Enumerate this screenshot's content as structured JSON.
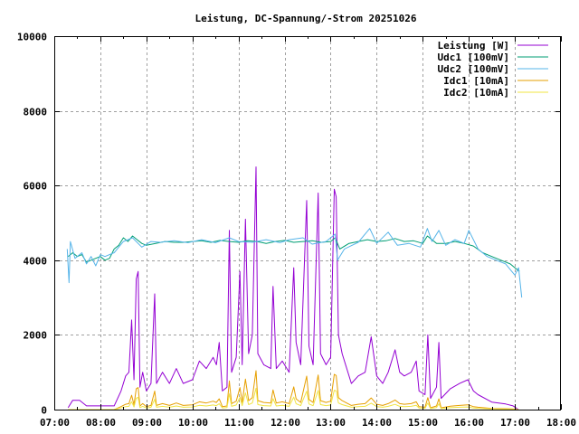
{
  "chart_data": {
    "type": "line",
    "title": "Leistung, DC-Spannung/-Strom 20251026",
    "xlabel": "",
    "ylabel": "",
    "xlim_hours": [
      7,
      18
    ],
    "ylim": [
      0,
      10000
    ],
    "grid": true,
    "legend_position": "top-right",
    "x_tick_labels": [
      "07:00",
      "08:00",
      "09:00",
      "10:00",
      "11:00",
      "12:00",
      "13:00",
      "14:00",
      "15:00",
      "16:00",
      "17:00",
      "18:00"
    ],
    "y_tick_labels": [
      "0",
      "2000",
      "4000",
      "6000",
      "8000",
      "10000"
    ],
    "power_x_hours": [
      7.3,
      7.4,
      7.55,
      7.7,
      8.0,
      8.3,
      8.45,
      8.55,
      8.62,
      8.68,
      8.73,
      8.78,
      8.82,
      8.86,
      8.92,
      9.0,
      9.1,
      9.18,
      9.22,
      9.35,
      9.5,
      9.65,
      9.8,
      10.0,
      10.15,
      10.3,
      10.45,
      10.52,
      10.58,
      10.65,
      10.75,
      10.8,
      10.85,
      10.95,
      11.03,
      11.08,
      11.15,
      11.22,
      11.3,
      11.38,
      11.42,
      11.55,
      11.7,
      11.75,
      11.82,
      11.95,
      12.1,
      12.2,
      12.25,
      12.35,
      12.48,
      12.53,
      12.62,
      12.73,
      12.78,
      12.9,
      13.0,
      13.08,
      13.12,
      13.17,
      13.25,
      13.45,
      13.6,
      13.75,
      13.88,
      14.0,
      14.13,
      14.25,
      14.4,
      14.5,
      14.6,
      14.75,
      14.86,
      14.92,
      15.05,
      15.11,
      15.17,
      15.3,
      15.35,
      15.4,
      15.6,
      15.8,
      15.98,
      16.1,
      16.2,
      16.5,
      16.8,
      16.96,
      17.08
    ],
    "voltage_x_hours_udc1": [
      7.3,
      7.4,
      7.5,
      7.6,
      7.7,
      7.8,
      7.9,
      8.0,
      8.1,
      8.2,
      8.3,
      8.4,
      8.5,
      8.6,
      8.7,
      8.8,
      8.9,
      9.0,
      9.2,
      9.4,
      9.6,
      9.8,
      10.0,
      10.2,
      10.4,
      10.6,
      10.8,
      11.0,
      11.2,
      11.4,
      11.6,
      11.8,
      12.0,
      12.2,
      12.4,
      12.6,
      12.8,
      13.0,
      13.1,
      13.2,
      13.4,
      13.6,
      13.8,
      14.0,
      14.2,
      14.4,
      14.6,
      14.8,
      15.0,
      15.1,
      15.3,
      15.5,
      15.7,
      15.9,
      16.1,
      16.3,
      16.5,
      16.7,
      16.9,
      17.0,
      17.1
    ],
    "voltage_x_hours_udc2": [
      7.28,
      7.32,
      7.35,
      7.45,
      7.6,
      7.7,
      7.8,
      7.9,
      8.0,
      8.1,
      8.3,
      8.5,
      8.7,
      8.9,
      9.1,
      9.3,
      9.6,
      9.9,
      10.2,
      10.5,
      10.8,
      11.0,
      11.3,
      11.6,
      11.9,
      12.1,
      12.4,
      12.6,
      12.9,
      13.1,
      13.15,
      13.3,
      13.6,
      13.85,
      14.0,
      14.25,
      14.45,
      14.7,
      14.95,
      15.1,
      15.2,
      15.35,
      15.5,
      15.7,
      15.9,
      16.0,
      16.2,
      16.4,
      16.6,
      16.8,
      17.0,
      17.08,
      17.15
    ],
    "series": [
      {
        "name": "Leistung [W]",
        "color": "#9400d3",
        "x_key": "power_x_hours",
        "values": [
          50,
          250,
          250,
          100,
          100,
          100,
          500,
          900,
          1000,
          2400,
          800,
          3500,
          3700,
          600,
          1000,
          500,
          700,
          3100,
          700,
          1000,
          700,
          1100,
          700,
          800,
          1300,
          1100,
          1400,
          1200,
          1800,
          500,
          600,
          4800,
          1000,
          1400,
          3700,
          1200,
          5100,
          1500,
          2000,
          6500,
          1500,
          1200,
          1100,
          3300,
          1100,
          1300,
          1000,
          3800,
          1800,
          1200,
          5600,
          1700,
          1200,
          5800,
          1500,
          1200,
          1400,
          5900,
          5700,
          2000,
          1500,
          700,
          900,
          1000,
          1950,
          900,
          700,
          1000,
          1600,
          1000,
          900,
          1000,
          1300,
          500,
          400,
          2000,
          300,
          600,
          1800,
          300,
          560,
          700,
          800,
          500,
          400,
          200,
          150,
          100,
          0
        ]
      },
      {
        "name": "Udc1 [100mV]",
        "color": "#009e73",
        "x_key": "voltage_x_hours_udc1",
        "values": [
          4100,
          4200,
          4100,
          4150,
          3950,
          4000,
          4050,
          4100,
          4000,
          4050,
          4300,
          4400,
          4600,
          4500,
          4650,
          4550,
          4450,
          4400,
          4450,
          4500,
          4480,
          4480,
          4500,
          4520,
          4480,
          4530,
          4500,
          4480,
          4520,
          4500,
          4450,
          4500,
          4530,
          4480,
          4500,
          4520,
          4480,
          4500,
          4600,
          4300,
          4450,
          4500,
          4550,
          4500,
          4520,
          4580,
          4500,
          4520,
          4450,
          4650,
          4450,
          4450,
          4500,
          4450,
          4380,
          4200,
          4100,
          4000,
          3900,
          3800,
          3700
        ]
      },
      {
        "name": "Udc2 [100mV]",
        "color": "#56b4e9",
        "x_key": "voltage_x_hours_udc2",
        "values": [
          4300,
          3400,
          4500,
          4050,
          4200,
          3900,
          4100,
          3850,
          4150,
          4100,
          4200,
          4500,
          4600,
          4350,
          4500,
          4480,
          4520,
          4470,
          4550,
          4470,
          4600,
          4500,
          4480,
          4550,
          4470,
          4550,
          4600,
          4430,
          4500,
          4700,
          4000,
          4300,
          4480,
          4850,
          4450,
          4750,
          4400,
          4450,
          4350,
          4850,
          4500,
          4800,
          4400,
          4550,
          4450,
          4800,
          4300,
          4100,
          4000,
          3900,
          3600,
          3800,
          3000
        ]
      },
      {
        "name": "Idc1 [10mA]",
        "color": "#e69f00",
        "x_key": "power_x_hours",
        "values": [
          0,
          0,
          0,
          0,
          0,
          0,
          80,
          144,
          160,
          384,
          128,
          560,
          592,
          96,
          160,
          80,
          112,
          496,
          112,
          160,
          112,
          176,
          112,
          128,
          208,
          176,
          224,
          192,
          288,
          80,
          96,
          768,
          160,
          224,
          592,
          192,
          816,
          240,
          320,
          1040,
          240,
          192,
          176,
          528,
          176,
          208,
          160,
          608,
          288,
          192,
          896,
          272,
          192,
          928,
          240,
          192,
          224,
          944,
          912,
          320,
          240,
          112,
          144,
          160,
          312,
          144,
          112,
          160,
          256,
          160,
          144,
          160,
          208,
          80,
          64,
          320,
          48,
          96,
          288,
          48,
          90,
          112,
          128,
          80,
          64,
          32,
          24,
          16,
          0
        ]
      },
      {
        "name": "Idc2 [10mA]",
        "color": "#f0e442",
        "x_key": "power_x_hours",
        "values": [
          0,
          0,
          0,
          0,
          0,
          0,
          44,
          79,
          88,
          211,
          70,
          308,
          326,
          53,
          88,
          44,
          62,
          273,
          62,
          88,
          62,
          97,
          62,
          70,
          114,
          97,
          123,
          106,
          158,
          44,
          53,
          422,
          88,
          123,
          326,
          106,
          449,
          132,
          176,
          572,
          132,
          106,
          97,
          290,
          97,
          114,
          88,
          334,
          158,
          106,
          493,
          150,
          106,
          510,
          132,
          106,
          123,
          519,
          502,
          176,
          132,
          62,
          79,
          88,
          172,
          79,
          62,
          88,
          141,
          88,
          79,
          88,
          114,
          44,
          35,
          176,
          26,
          53,
          158,
          26,
          50,
          62,
          70,
          44,
          35,
          18,
          13,
          9,
          0
        ]
      }
    ]
  }
}
